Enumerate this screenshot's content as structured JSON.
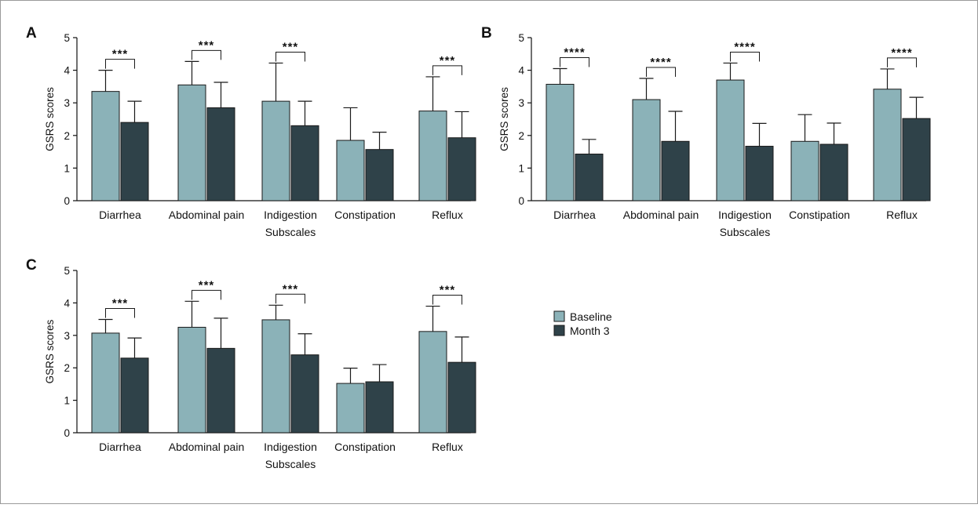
{
  "colors": {
    "baseline": "#8bb2b8",
    "month3": "#2f4249",
    "axis": "#111111",
    "frame": "#9a9a9a"
  },
  "legend": {
    "items": [
      {
        "label": "Baseline",
        "color": "#8bb2b8"
      },
      {
        "label": "Month 3",
        "color": "#2f4249"
      }
    ]
  },
  "chart_data": [
    {
      "panel": "A",
      "type": "bar",
      "ylabel": "GSRS scores",
      "xlabel": "Subscales",
      "ylim": [
        0,
        5
      ],
      "yticks": [
        0,
        1,
        2,
        3,
        4,
        5
      ],
      "categories": [
        "Diarrhea",
        "Abdominal pain",
        "Indigestion",
        "Constipation",
        "Reflux"
      ],
      "series": [
        {
          "name": "Baseline",
          "values": [
            3.35,
            3.55,
            3.05,
            1.85,
            2.75
          ],
          "errors": [
            0.65,
            0.72,
            1.17,
            1.0,
            1.05
          ]
        },
        {
          "name": "Month 3",
          "values": [
            2.4,
            2.85,
            2.3,
            1.57,
            1.93
          ],
          "errors": [
            0.65,
            0.78,
            0.75,
            0.53,
            0.8
          ]
        }
      ],
      "significance": [
        "***",
        "***",
        "***",
        "",
        "***"
      ]
    },
    {
      "panel": "B",
      "type": "bar",
      "ylabel": "GSRS scores",
      "xlabel": "Subscales",
      "ylim": [
        0,
        5
      ],
      "yticks": [
        0,
        1,
        2,
        3,
        4,
        5
      ],
      "categories": [
        "Diarrhea",
        "Abdominal pain",
        "Indigestion",
        "Constipation",
        "Reflux"
      ],
      "series": [
        {
          "name": "Baseline",
          "values": [
            3.57,
            3.1,
            3.7,
            1.82,
            3.42
          ],
          "errors": [
            0.48,
            0.65,
            0.52,
            0.82,
            0.62
          ]
        },
        {
          "name": "Month 3",
          "values": [
            1.43,
            1.82,
            1.67,
            1.73,
            2.52
          ],
          "errors": [
            0.45,
            0.92,
            0.7,
            0.65,
            0.65
          ]
        }
      ],
      "significance": [
        "****",
        "****",
        "****",
        "",
        "****"
      ]
    },
    {
      "panel": "C",
      "type": "bar",
      "ylabel": "GSRS scores",
      "xlabel": "Subscales",
      "ylim": [
        0,
        5
      ],
      "yticks": [
        0,
        1,
        2,
        3,
        4,
        5
      ],
      "categories": [
        "Diarrhea",
        "Abdominal pain",
        "Indigestion",
        "Constipation",
        "Reflux"
      ],
      "series": [
        {
          "name": "Baseline",
          "values": [
            3.07,
            3.25,
            3.48,
            1.52,
            3.12
          ],
          "errors": [
            0.42,
            0.8,
            0.45,
            0.47,
            0.78
          ]
        },
        {
          "name": "Month 3",
          "values": [
            2.3,
            2.6,
            2.4,
            1.57,
            2.17
          ],
          "errors": [
            0.62,
            0.93,
            0.65,
            0.53,
            0.78
          ]
        }
      ],
      "significance": [
        "***",
        "***",
        "***",
        "",
        "***"
      ]
    }
  ]
}
